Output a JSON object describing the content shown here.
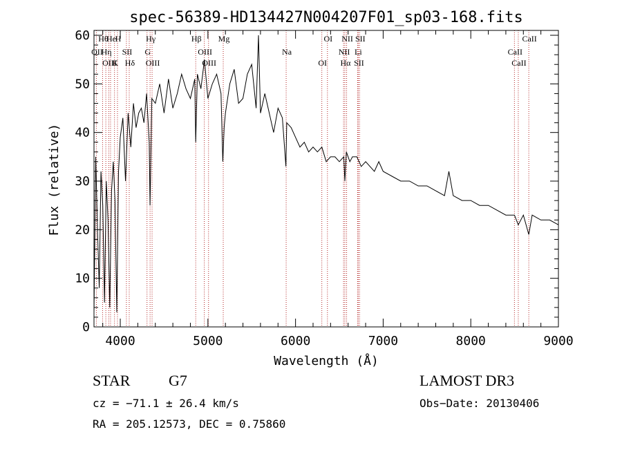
{
  "chart_data": {
    "type": "line",
    "title": "spec-56389-HD134427N004207F01_sp03-168.fits",
    "xlabel": "Wavelength (Å)",
    "ylabel": "Flux (relative)",
    "xlim": [
      3700,
      9000
    ],
    "ylim": [
      0,
      61
    ],
    "x_ticks": [
      4000,
      5000,
      6000,
      7000,
      8000,
      9000
    ],
    "y_ticks": [
      0,
      10,
      20,
      30,
      40,
      50,
      60
    ],
    "grid": false,
    "series": [
      {
        "x": [
          3700,
          3720,
          3740,
          3760,
          3780,
          3800,
          3820,
          3840,
          3860,
          3880,
          3900,
          3920,
          3940,
          3960,
          3980,
          4000,
          4030,
          4060,
          4090,
          4120,
          4150,
          4180,
          4210,
          4240,
          4270,
          4300,
          4330,
          4340,
          4360,
          4400,
          4450,
          4500,
          4550,
          4600,
          4650,
          4700,
          4750,
          4800,
          4850,
          4861,
          4880,
          4920,
          4960,
          5000,
          5050,
          5100,
          5150,
          5170,
          5185,
          5200,
          5250,
          5300,
          5350,
          5400,
          5450,
          5500,
          5550,
          5577,
          5600,
          5650,
          5700,
          5750,
          5800,
          5850,
          5890,
          5900,
          5950,
          6000,
          6050,
          6100,
          6150,
          6200,
          6250,
          6300,
          6350,
          6400,
          6450,
          6500,
          6550,
          6563,
          6580,
          6620,
          6650,
          6700,
          6750,
          6800,
          6850,
          6900,
          6950,
          7000,
          7100,
          7200,
          7300,
          7400,
          7500,
          7600,
          7700,
          7750,
          7800,
          7900,
          8000,
          8100,
          8200,
          8300,
          8400,
          8498,
          8542,
          8600,
          8662,
          8700,
          8800,
          8900,
          9000
        ],
        "y": [
          3,
          35,
          20,
          8,
          32,
          25,
          5,
          30,
          22,
          4,
          28,
          34,
          26,
          3,
          32,
          39,
          43,
          30,
          44,
          37,
          46,
          41,
          44,
          45,
          42,
          48,
          38,
          25,
          47,
          46,
          50,
          44,
          51,
          45,
          48,
          52,
          49,
          47,
          51,
          38,
          52,
          49,
          55,
          47,
          50,
          52,
          48,
          34,
          41,
          44,
          50,
          53,
          46,
          47,
          52,
          54,
          45,
          60,
          44,
          48,
          44,
          40,
          45,
          43,
          33,
          42,
          41,
          39,
          37,
          38,
          36,
          37,
          36,
          37,
          34,
          35,
          35,
          34,
          35,
          30,
          36,
          34,
          35,
          35,
          33,
          34,
          33,
          32,
          34,
          32,
          31,
          30,
          30,
          29,
          29,
          28,
          27,
          32,
          27,
          26,
          26,
          25,
          25,
          24,
          23,
          23,
          21,
          23,
          19,
          23,
          22,
          22,
          21
        ]
      }
    ],
    "lines": [
      {
        "name": "Hθ",
        "x": 3798
      },
      {
        "name": "OII",
        "x": 3727
      },
      {
        "name": "OIII",
        "x": 3869
      },
      {
        "name": "He",
        "x": 3889
      },
      {
        "name": "Hη",
        "x": 3835
      },
      {
        "name": "K",
        "x": 3934
      },
      {
        "name": "H",
        "x": 3968
      },
      {
        "name": "SII",
        "x": 4070
      },
      {
        "name": "Hδ",
        "x": 4102
      },
      {
        "name": "Hγ",
        "x": 4340
      },
      {
        "name": "G",
        "x": 4305
      },
      {
        "name": "OIII",
        "x": 4363
      },
      {
        "name": "Hβ",
        "x": 4861
      },
      {
        "name": "OIII",
        "x": 4959
      },
      {
        "name": "OIII",
        "x": 5007
      },
      {
        "name": "Mg",
        "x": 5175
      },
      {
        "name": "Na",
        "x": 5893
      },
      {
        "name": "OI",
        "x": 6300
      },
      {
        "name": "OI",
        "x": 6364
      },
      {
        "name": "NII",
        "x": 6548
      },
      {
        "name": "Hα",
        "x": 6563
      },
      {
        "name": "NII",
        "x": 6583
      },
      {
        "name": "Li",
        "x": 6708
      },
      {
        "name": "SII",
        "x": 6716
      },
      {
        "name": "SII",
        "x": 6731
      },
      {
        "name": "CaII",
        "x": 8498
      },
      {
        "name": "CaII",
        "x": 8542
      },
      {
        "name": "CaII",
        "x": 8662
      }
    ]
  },
  "info": {
    "object_type": "STAR",
    "subclass": "G7",
    "survey": "LAMOST DR3",
    "cz_text": "cz = −71.1 ± 26.4 km/s",
    "obs_date": "Obs−Date: 20130406",
    "radec": "RA = 205.12573, DEC =   0.75860"
  },
  "colors": {
    "spectrum": "#000000",
    "line_markers": "#b22222",
    "axes": "#000000"
  }
}
